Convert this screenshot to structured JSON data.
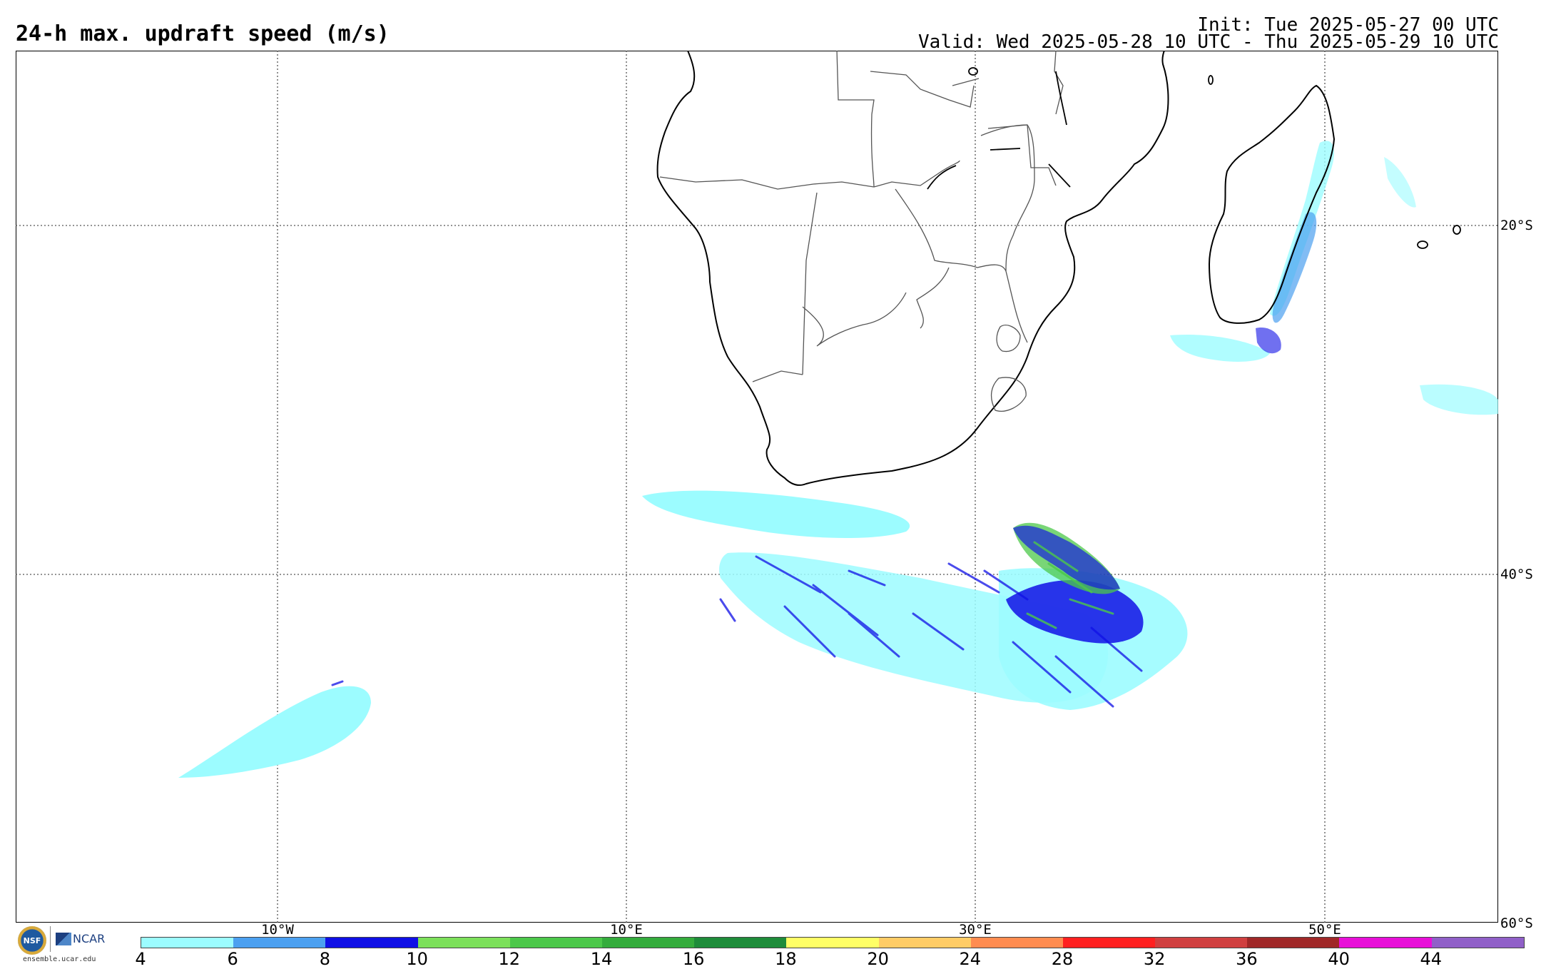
{
  "header": {
    "title": "24-h max. updraft speed (m/s)",
    "init": "Init: Tue 2025-05-27 00 UTC",
    "valid": "Valid: Wed 2025-05-28 10 UTC - Thu 2025-05-29 10 UTC"
  },
  "map": {
    "region": "Southern Africa & South Atlantic / SW Indian Ocean",
    "lat_labels": [
      "20°S",
      "40°S",
      "60°S"
    ],
    "lon_labels": [
      "10°W",
      "10°E",
      "30°E",
      "50°E"
    ],
    "grid": "dotted",
    "colors": {
      "coast": "#000000",
      "border": "#555555",
      "grid": "#555555"
    }
  },
  "colorbar": {
    "labels": [
      "4",
      "6",
      "8",
      "10",
      "12",
      "14",
      "16",
      "18",
      "20",
      "24",
      "28",
      "32",
      "36",
      "40",
      "44"
    ],
    "colors": [
      "#9cfcff",
      "#4ca0f0",
      "#1010e6",
      "#7ce05a",
      "#4cc84a",
      "#34ac3c",
      "#1e8c3a",
      "#ffff66",
      "#ffcc66",
      "#ff8c50",
      "#ff2020",
      "#d04040",
      "#a02828",
      "#e810d8",
      "#9060c8"
    ]
  },
  "footer": {
    "logo_nsf": "NSF",
    "logo_ncar": "NCAR",
    "url": "ensemble.ucar.edu"
  }
}
